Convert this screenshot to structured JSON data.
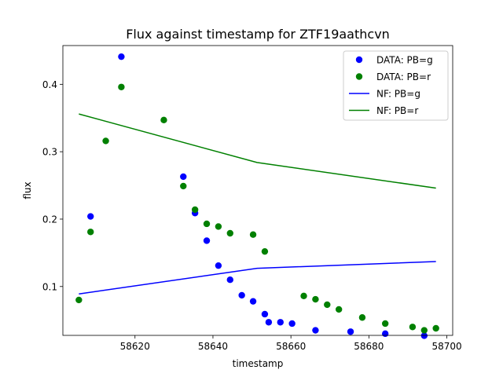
{
  "chart_data": {
    "type": "scatter",
    "title": "Flux against timestamp for ZTF19aathcvn",
    "xlabel": "timestamp",
    "ylabel": "flux",
    "xlim": [
      58601.5,
      58701.5
    ],
    "ylim": [
      0.0275,
      0.4575
    ],
    "xticks": [
      58620,
      58640,
      58660,
      58680,
      58700
    ],
    "yticks": [
      0.1,
      0.2,
      0.3,
      0.4
    ],
    "grid": false,
    "legend_placement": "upper-right",
    "series": [
      {
        "name": "DATA: PB=g",
        "kind": "scatter",
        "color": "#0000ff",
        "x": [
          58608.6,
          58616.5,
          58632.4,
          58635.4,
          58638.4,
          58641.4,
          58644.4,
          58647.4,
          58650.3,
          58653.3,
          58654.3,
          58657.3,
          58660.3,
          58666.3,
          58675.3,
          58684.2,
          58694.2
        ],
        "y": [
          0.204,
          0.441,
          0.263,
          0.209,
          0.168,
          0.131,
          0.11,
          0.087,
          0.078,
          0.059,
          0.047,
          0.047,
          0.045,
          0.035,
          0.033,
          0.03,
          0.027
        ]
      },
      {
        "name": "DATA: PB=r",
        "kind": "scatter",
        "color": "#008000",
        "x": [
          58605.6,
          58608.6,
          58612.5,
          58616.5,
          58627.4,
          58632.4,
          58635.4,
          58638.4,
          58641.4,
          58644.4,
          58650.3,
          58653.3,
          58663.3,
          58666.3,
          58669.3,
          58672.3,
          58678.3,
          58684.2,
          58691.2,
          58694.2,
          58697.2
        ],
        "y": [
          0.08,
          0.181,
          0.316,
          0.396,
          0.347,
          0.249,
          0.214,
          0.193,
          0.189,
          0.179,
          0.177,
          0.152,
          0.086,
          0.081,
          0.073,
          0.066,
          0.054,
          0.045,
          0.04,
          0.035,
          0.038
        ]
      },
      {
        "name": "NF: PB=g",
        "kind": "line",
        "color": "#0000ff",
        "x": [
          58605.6,
          58651.3,
          58697.2
        ],
        "y": [
          0.089,
          0.127,
          0.137
        ]
      },
      {
        "name": "NF: PB=r",
        "kind": "line",
        "color": "#008000",
        "x": [
          58605.6,
          58651.3,
          58697.2
        ],
        "y": [
          0.356,
          0.284,
          0.246
        ]
      }
    ]
  }
}
